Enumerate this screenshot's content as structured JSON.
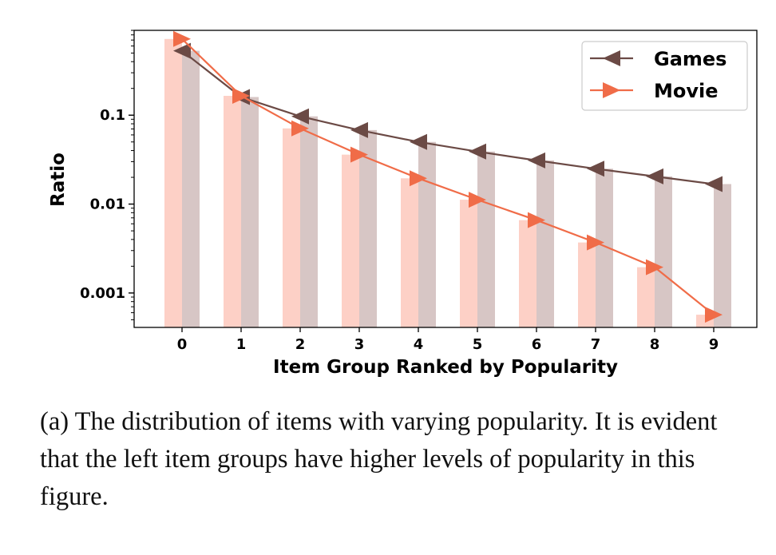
{
  "chart_data": {
    "type": "bar",
    "xlabel": "Item Group Ranked by Popularity",
    "ylabel": "Ratio",
    "yscale": "log",
    "ylim": [
      0.00041,
      0.9
    ],
    "categories": [
      "0",
      "1",
      "2",
      "3",
      "4",
      "5",
      "6",
      "7",
      "8",
      "9"
    ],
    "yticks": [
      {
        "value": 0.1,
        "label": "0.1"
      },
      {
        "value": 0.01,
        "label": "0.01"
      },
      {
        "value": 0.001,
        "label": "0.001"
      }
    ],
    "legend_position": "top-right",
    "series": [
      {
        "name": "Games",
        "color": "#6b4a45",
        "bar_color": "#d7c6c5",
        "marker": "left-triangle",
        "values": [
          0.53,
          0.16,
          0.097,
          0.068,
          0.05,
          0.039,
          0.031,
          0.025,
          0.0205,
          0.0168
        ]
      },
      {
        "name": "Movie",
        "color": "#f06c48",
        "bar_color": "#fdd0c6",
        "marker": "right-triangle",
        "values": [
          0.72,
          0.165,
          0.071,
          0.036,
          0.0195,
          0.0112,
          0.0066,
          0.0037,
          0.00195,
          0.00057
        ]
      }
    ]
  },
  "caption": "(a) The distribution of items with varying popularity. It is evident that the left item groups have higher levels of popularity in this figure."
}
